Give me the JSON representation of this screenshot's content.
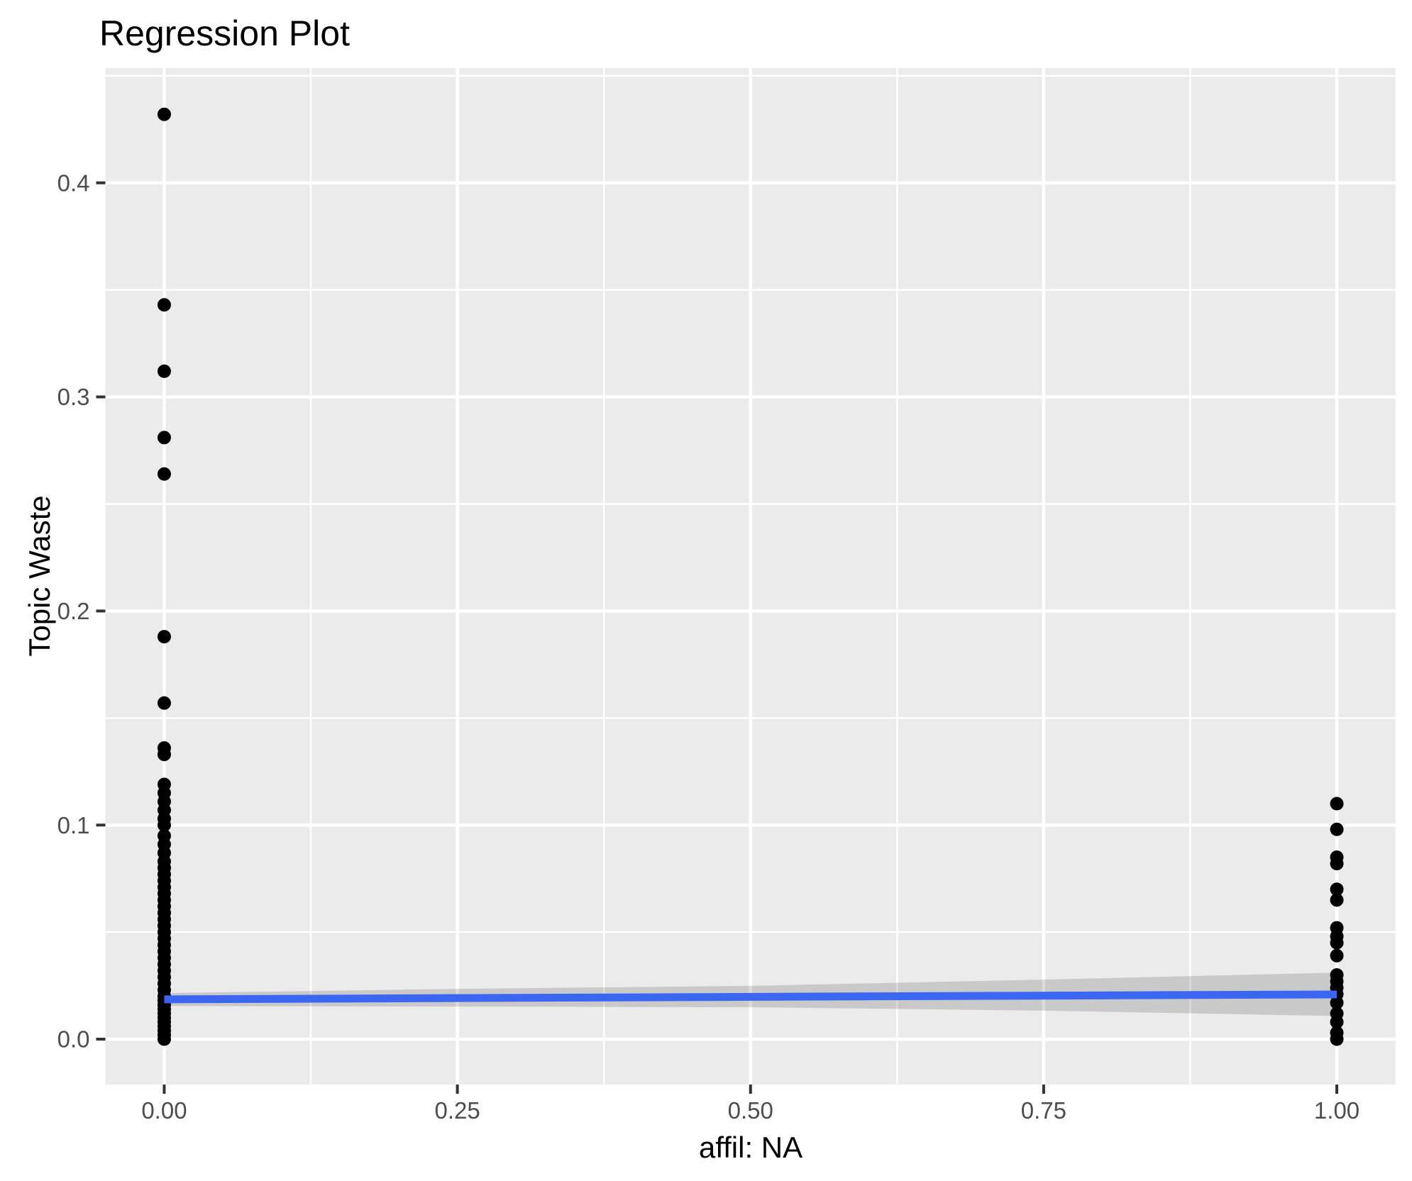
{
  "chart_data": {
    "type": "scatter",
    "title": "Regression Plot",
    "xlabel": "affil: NA",
    "ylabel": "Topic Waste",
    "grid": true,
    "legend": false,
    "panel_background": "#EBEBEB",
    "xlim": [
      -0.0502,
      1.0502
    ],
    "ylim": [
      -0.0212,
      0.4536
    ],
    "x_ticks": {
      "values": [
        0.0,
        0.25,
        0.5,
        0.75,
        1.0
      ],
      "labels": [
        "0.00",
        "0.25",
        "0.50",
        "0.75",
        "1.00"
      ]
    },
    "y_ticks": {
      "values": [
        0.0,
        0.1,
        0.2,
        0.3,
        0.4
      ],
      "labels": [
        "0.0",
        "0.1",
        "0.2",
        "0.3",
        "0.4"
      ]
    },
    "x_minor": [
      0.125,
      0.375,
      0.625,
      0.875
    ],
    "y_minor": [
      0.05,
      0.15,
      0.25,
      0.35,
      0.45
    ],
    "series": [
      {
        "name": "observations",
        "color": "#000000",
        "points": [
          [
            0,
            0.432
          ],
          [
            0,
            0.343
          ],
          [
            0,
            0.312
          ],
          [
            0,
            0.281
          ],
          [
            0,
            0.264
          ],
          [
            0,
            0.188
          ],
          [
            0,
            0.157
          ],
          [
            0,
            0.136
          ],
          [
            0,
            0.133
          ],
          [
            0,
            0.119
          ],
          [
            0,
            0.115
          ],
          [
            0,
            0.111
          ],
          [
            0,
            0.107
          ],
          [
            0,
            0.103
          ],
          [
            0,
            0.1
          ],
          [
            0,
            0.095
          ],
          [
            0,
            0.091
          ],
          [
            0,
            0.087
          ],
          [
            0,
            0.083
          ],
          [
            0,
            0.08
          ],
          [
            0,
            0.077
          ],
          [
            0,
            0.074
          ],
          [
            0,
            0.071
          ],
          [
            0,
            0.068
          ],
          [
            0,
            0.065
          ],
          [
            0,
            0.062
          ],
          [
            0,
            0.059
          ],
          [
            0,
            0.056
          ],
          [
            0,
            0.053
          ],
          [
            0,
            0.05
          ],
          [
            0,
            0.047
          ],
          [
            0,
            0.044
          ],
          [
            0,
            0.041
          ],
          [
            0,
            0.038
          ],
          [
            0,
            0.035
          ],
          [
            0,
            0.032
          ],
          [
            0,
            0.029
          ],
          [
            0,
            0.026
          ],
          [
            0,
            0.023
          ],
          [
            0,
            0.02
          ],
          [
            0,
            0.018
          ],
          [
            0,
            0.016
          ],
          [
            0,
            0.014
          ],
          [
            0,
            0.012
          ],
          [
            0,
            0.01
          ],
          [
            0,
            0.008
          ],
          [
            0,
            0.006
          ],
          [
            0,
            0.004
          ],
          [
            0,
            0.002
          ],
          [
            0,
            0.0
          ],
          [
            1,
            0.11
          ],
          [
            1,
            0.098
          ],
          [
            1,
            0.085
          ],
          [
            1,
            0.082
          ],
          [
            1,
            0.07
          ],
          [
            1,
            0.065
          ],
          [
            1,
            0.052
          ],
          [
            1,
            0.048
          ],
          [
            1,
            0.045
          ],
          [
            1,
            0.039
          ],
          [
            1,
            0.03
          ],
          [
            1,
            0.027
          ],
          [
            1,
            0.024
          ],
          [
            1,
            0.021
          ],
          [
            1,
            0.017
          ],
          [
            1,
            0.012
          ],
          [
            1,
            0.008
          ],
          [
            1,
            0.003
          ],
          [
            1,
            0.0
          ]
        ]
      }
    ],
    "regression_line": {
      "x": [
        0,
        1
      ],
      "y": [
        0.0186,
        0.0209
      ],
      "color": "#3A66F2"
    },
    "confidence_band": {
      "x": [
        0,
        0.25,
        0.5,
        0.75,
        1
      ],
      "upper": [
        0.0215,
        0.0235,
        0.0249,
        0.0278,
        0.0311
      ],
      "lower": [
        0.0155,
        0.0152,
        0.0149,
        0.0133,
        0.0108
      ],
      "fill": "rgba(0,0,0,0.14)"
    },
    "colors": {
      "panel_bg": "#EBEBEB",
      "grid": "#FFFFFF",
      "tick_mark": "#333333",
      "tick_label": "#4D4D4D",
      "axis_title": "#000000",
      "plot_title": "#000000",
      "point": "#000000"
    }
  }
}
